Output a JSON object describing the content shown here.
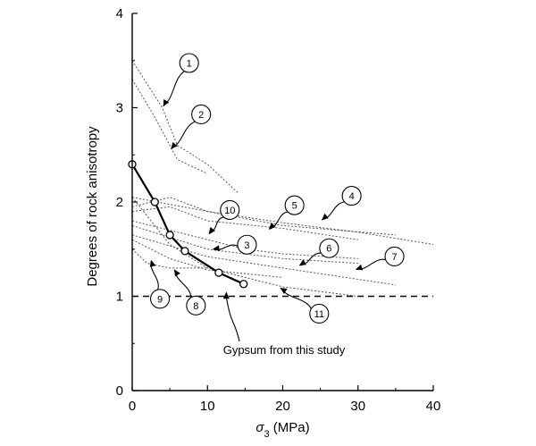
{
  "chart_data": {
    "type": "line",
    "title": "",
    "xlabel_symbol": "σ",
    "xlabel_sub": "3",
    "xlabel_unit": " (MPa)",
    "ylabel": "Degrees of rock anisotropy",
    "xlim": [
      0,
      40
    ],
    "ylim": [
      0,
      4
    ],
    "x_ticks": [
      "0",
      "10",
      "20",
      "30",
      "40"
    ],
    "y_ticks": [
      "0",
      "1",
      "2",
      "3",
      "4"
    ],
    "reference_line": {
      "y": 1,
      "style": "dashed"
    },
    "highlight_series": {
      "name": "Gypsum from this study",
      "x": [
        0,
        3,
        5,
        7,
        11.5,
        14.8
      ],
      "y": [
        2.4,
        2.0,
        1.65,
        1.48,
        1.25,
        1.13
      ]
    },
    "series": [
      {
        "name": "1",
        "x": [
          0,
          4,
          6,
          10,
          14
        ],
        "y": [
          3.5,
          3.0,
          2.6,
          2.4,
          2.1
        ]
      },
      {
        "name": "2",
        "x": [
          0,
          3,
          6,
          10
        ],
        "y": [
          3.3,
          2.9,
          2.45,
          2.3
        ]
      },
      {
        "name": "4",
        "x": [
          0,
          10,
          20,
          30,
          40
        ],
        "y": [
          2.05,
          1.9,
          1.78,
          1.68,
          1.55
        ]
      },
      {
        "name": "5",
        "x": [
          0,
          5,
          10,
          20,
          35
        ],
        "y": [
          1.95,
          2.05,
          1.9,
          1.75,
          1.65
        ]
      },
      {
        "name": "10",
        "x": [
          0,
          5,
          10,
          20,
          30
        ],
        "y": [
          1.9,
          1.95,
          1.8,
          1.72,
          1.6
        ]
      },
      {
        "name": "3",
        "x": [
          0,
          5,
          10,
          15,
          20,
          30
        ],
        "y": [
          1.8,
          1.7,
          1.6,
          1.5,
          1.45,
          1.4
        ]
      },
      {
        "name": "6",
        "x": [
          0,
          10,
          20,
          30
        ],
        "y": [
          1.75,
          1.5,
          1.4,
          1.35
        ]
      },
      {
        "name": "7",
        "x": [
          0,
          10,
          20,
          35
        ],
        "y": [
          1.65,
          1.42,
          1.3,
          1.12
        ]
      },
      {
        "name": "8",
        "x": [
          0,
          5,
          10,
          20
        ],
        "y": [
          1.6,
          1.4,
          1.28,
          1.2
        ]
      },
      {
        "name": "9",
        "x": [
          0,
          2,
          5,
          10
        ],
        "y": [
          1.5,
          1.35,
          1.3,
          1.3
        ]
      },
      {
        "name": "11",
        "x": [
          0,
          5,
          10,
          20,
          30
        ],
        "y": [
          2.05,
          1.55,
          1.3,
          1.1,
          1.0
        ]
      }
    ],
    "callouts": [
      {
        "label": "1",
        "target": [
          4,
          3.0
        ]
      },
      {
        "label": "2",
        "target": [
          5,
          2.55
        ]
      },
      {
        "label": "10",
        "target": [
          10,
          1.65
        ]
      },
      {
        "label": "5",
        "target": [
          18,
          1.7
        ]
      },
      {
        "label": "4",
        "target": [
          25,
          1.8
        ]
      },
      {
        "label": "3",
        "target": [
          10.5,
          1.5
        ]
      },
      {
        "label": "6",
        "target": [
          22,
          1.32
        ]
      },
      {
        "label": "7",
        "target": [
          29.5,
          1.28
        ]
      },
      {
        "label": "11",
        "target": [
          19.5,
          1.1
        ]
      },
      {
        "label": "8",
        "target": [
          5.5,
          1.3
        ]
      },
      {
        "label": "9",
        "target": [
          2.5,
          1.4
        ]
      }
    ],
    "annotation": {
      "text": "Gypsum from this study",
      "target": [
        12.5,
        1.05
      ]
    }
  }
}
